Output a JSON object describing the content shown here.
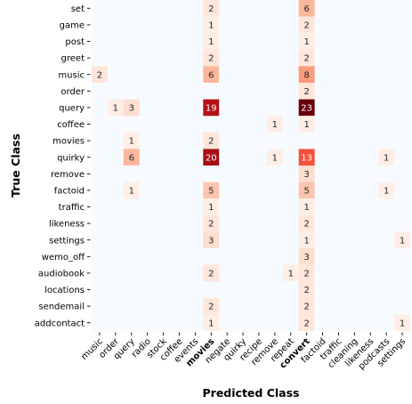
{
  "chart_data": {
    "type": "heatmap",
    "title": "",
    "xlabel": "Predicted Class",
    "ylabel": "True Class",
    "x_categories": [
      "music",
      "order",
      "query",
      "radio",
      "stock",
      "coffee",
      "events",
      "movies",
      "negate",
      "quirky",
      "recipe",
      "remove",
      "repeat",
      "convert",
      "factoid",
      "traffic",
      "cleaning",
      "likeness",
      "podcasts",
      "settings"
    ],
    "y_categories": [
      "set",
      "game",
      "post",
      "greet",
      "music",
      "order",
      "query",
      "coffee",
      "movies",
      "quirky",
      "remove",
      "factoid",
      "traffic",
      "likeness",
      "settings",
      "wemo_off",
      "audiobook",
      "locations",
      "sendemail",
      "addcontact"
    ],
    "highlighted_x_labels": [
      "movies",
      "convert"
    ],
    "highlight_color": "#ff0000",
    "colormap": "Reds",
    "cells": [
      {
        "row": "set",
        "col": "movies",
        "value": 2
      },
      {
        "row": "set",
        "col": "convert",
        "value": 6
      },
      {
        "row": "game",
        "col": "movies",
        "value": 1
      },
      {
        "row": "game",
        "col": "convert",
        "value": 2
      },
      {
        "row": "post",
        "col": "movies",
        "value": 1
      },
      {
        "row": "post",
        "col": "convert",
        "value": 1
      },
      {
        "row": "greet",
        "col": "movies",
        "value": 2
      },
      {
        "row": "greet",
        "col": "convert",
        "value": 2
      },
      {
        "row": "music",
        "col": "music",
        "value": 2
      },
      {
        "row": "music",
        "col": "movies",
        "value": 6
      },
      {
        "row": "music",
        "col": "convert",
        "value": 8
      },
      {
        "row": "order",
        "col": "convert",
        "value": 2
      },
      {
        "row": "query",
        "col": "order",
        "value": 1
      },
      {
        "row": "query",
        "col": "query",
        "value": 3
      },
      {
        "row": "query",
        "col": "movies",
        "value": 19
      },
      {
        "row": "query",
        "col": "convert",
        "value": 23
      },
      {
        "row": "coffee",
        "col": "remove",
        "value": 1
      },
      {
        "row": "coffee",
        "col": "convert",
        "value": 1
      },
      {
        "row": "movies",
        "col": "query",
        "value": 1
      },
      {
        "row": "movies",
        "col": "movies",
        "value": 2
      },
      {
        "row": "quirky",
        "col": "query",
        "value": 6
      },
      {
        "row": "quirky",
        "col": "movies",
        "value": 20
      },
      {
        "row": "quirky",
        "col": "remove",
        "value": 1
      },
      {
        "row": "quirky",
        "col": "convert",
        "value": 13
      },
      {
        "row": "quirky",
        "col": "podcasts",
        "value": 1
      },
      {
        "row": "remove",
        "col": "convert",
        "value": 3
      },
      {
        "row": "factoid",
        "col": "query",
        "value": 1
      },
      {
        "row": "factoid",
        "col": "movies",
        "value": 5
      },
      {
        "row": "factoid",
        "col": "convert",
        "value": 5
      },
      {
        "row": "factoid",
        "col": "podcasts",
        "value": 1
      },
      {
        "row": "traffic",
        "col": "movies",
        "value": 1
      },
      {
        "row": "traffic",
        "col": "convert",
        "value": 1
      },
      {
        "row": "likeness",
        "col": "movies",
        "value": 2
      },
      {
        "row": "likeness",
        "col": "convert",
        "value": 2
      },
      {
        "row": "settings",
        "col": "movies",
        "value": 3
      },
      {
        "row": "settings",
        "col": "convert",
        "value": 1
      },
      {
        "row": "settings",
        "col": "settings",
        "value": 1
      },
      {
        "row": "wemo_off",
        "col": "convert",
        "value": 3
      },
      {
        "row": "audiobook",
        "col": "movies",
        "value": 2
      },
      {
        "row": "audiobook",
        "col": "repeat",
        "value": 1
      },
      {
        "row": "audiobook",
        "col": "convert",
        "value": 2
      },
      {
        "row": "locations",
        "col": "convert",
        "value": 2
      },
      {
        "row": "sendemail",
        "col": "movies",
        "value": 2
      },
      {
        "row": "sendemail",
        "col": "convert",
        "value": 2
      },
      {
        "row": "addcontact",
        "col": "movies",
        "value": 1
      },
      {
        "row": "addcontact",
        "col": "convert",
        "value": 2
      },
      {
        "row": "addcontact",
        "col": "settings",
        "value": 1
      }
    ],
    "vmin": 0,
    "vmax": 23
  }
}
